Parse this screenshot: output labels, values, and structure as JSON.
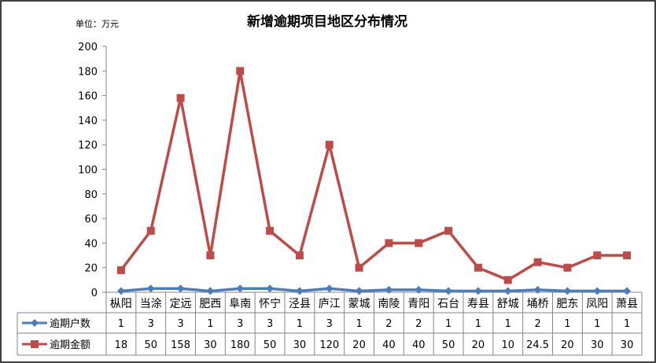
{
  "chart_data": {
    "type": "line",
    "title": "新增逾期项目地区分布情况",
    "unit_label": "单位：万元",
    "categories": [
      "枞阳",
      "当涂",
      "定远",
      "肥西",
      "阜南",
      "怀宁",
      "泾县",
      "庐江",
      "蒙城",
      "南陵",
      "青阳",
      "石台",
      "寿县",
      "舒城",
      "埇桥",
      "肥东",
      "凤阳",
      "萧县"
    ],
    "series": [
      {
        "name": "逾期户数",
        "color": "#4a7ebb",
        "marker": "diamond",
        "values": [
          1,
          3,
          3,
          1,
          3,
          3,
          1,
          3,
          1,
          2,
          2,
          1,
          1,
          1,
          2,
          1,
          1,
          1
        ],
        "labels": [
          "1",
          "3",
          "3",
          "1",
          "3",
          "3",
          "1",
          "3",
          "1",
          "2",
          "2",
          "1",
          "1",
          "1",
          "2",
          "1",
          "1",
          "1"
        ]
      },
      {
        "name": "逾期金额",
        "color": "#be4b48",
        "marker": "square",
        "values": [
          18,
          50,
          158,
          30,
          180,
          50,
          30,
          120,
          20,
          40,
          40,
          50,
          20,
          10,
          24.5,
          20,
          30,
          30
        ],
        "labels": [
          "18",
          "50",
          "158",
          "30",
          "180",
          "50",
          "30",
          "120",
          "20",
          "40",
          "40",
          "50",
          "20",
          "10",
          "24.5",
          "20",
          "30",
          "30"
        ]
      }
    ],
    "yticks": [
      "0",
      "20",
      "40",
      "60",
      "80",
      "100",
      "120",
      "140",
      "160",
      "180",
      "200"
    ],
    "ylim": [
      0,
      200
    ],
    "grid": false,
    "legend": "data-table-bottom"
  }
}
